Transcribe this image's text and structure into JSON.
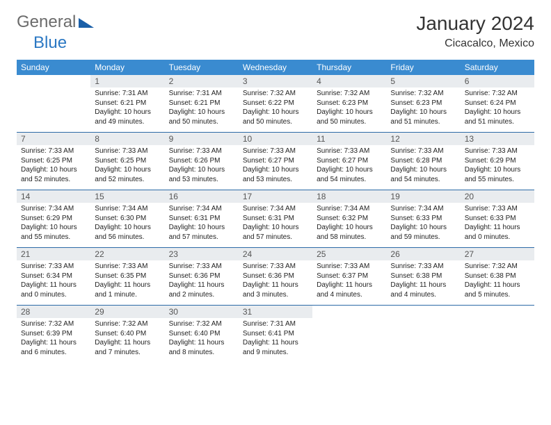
{
  "brand": {
    "part1": "General",
    "part2": "Blue"
  },
  "title": "January 2024",
  "location": "Cicacalco, Mexico",
  "colors": {
    "header_bg": "#3a8bd0",
    "header_text": "#ffffff",
    "daynum_bg": "#e9ecef",
    "rule": "#2b6aa6",
    "brand_gray": "#6b6b6b",
    "brand_blue": "#2b78c3"
  },
  "daysOfWeek": [
    "Sunday",
    "Monday",
    "Tuesday",
    "Wednesday",
    "Thursday",
    "Friday",
    "Saturday"
  ],
  "startOffset": 1,
  "days": [
    {
      "n": "1",
      "sunrise": "7:31 AM",
      "sunset": "6:21 PM",
      "daylight": "10 hours and 49 minutes."
    },
    {
      "n": "2",
      "sunrise": "7:31 AM",
      "sunset": "6:21 PM",
      "daylight": "10 hours and 50 minutes."
    },
    {
      "n": "3",
      "sunrise": "7:32 AM",
      "sunset": "6:22 PM",
      "daylight": "10 hours and 50 minutes."
    },
    {
      "n": "4",
      "sunrise": "7:32 AM",
      "sunset": "6:23 PM",
      "daylight": "10 hours and 50 minutes."
    },
    {
      "n": "5",
      "sunrise": "7:32 AM",
      "sunset": "6:23 PM",
      "daylight": "10 hours and 51 minutes."
    },
    {
      "n": "6",
      "sunrise": "7:32 AM",
      "sunset": "6:24 PM",
      "daylight": "10 hours and 51 minutes."
    },
    {
      "n": "7",
      "sunrise": "7:33 AM",
      "sunset": "6:25 PM",
      "daylight": "10 hours and 52 minutes."
    },
    {
      "n": "8",
      "sunrise": "7:33 AM",
      "sunset": "6:25 PM",
      "daylight": "10 hours and 52 minutes."
    },
    {
      "n": "9",
      "sunrise": "7:33 AM",
      "sunset": "6:26 PM",
      "daylight": "10 hours and 53 minutes."
    },
    {
      "n": "10",
      "sunrise": "7:33 AM",
      "sunset": "6:27 PM",
      "daylight": "10 hours and 53 minutes."
    },
    {
      "n": "11",
      "sunrise": "7:33 AM",
      "sunset": "6:27 PM",
      "daylight": "10 hours and 54 minutes."
    },
    {
      "n": "12",
      "sunrise": "7:33 AM",
      "sunset": "6:28 PM",
      "daylight": "10 hours and 54 minutes."
    },
    {
      "n": "13",
      "sunrise": "7:33 AM",
      "sunset": "6:29 PM",
      "daylight": "10 hours and 55 minutes."
    },
    {
      "n": "14",
      "sunrise": "7:34 AM",
      "sunset": "6:29 PM",
      "daylight": "10 hours and 55 minutes."
    },
    {
      "n": "15",
      "sunrise": "7:34 AM",
      "sunset": "6:30 PM",
      "daylight": "10 hours and 56 minutes."
    },
    {
      "n": "16",
      "sunrise": "7:34 AM",
      "sunset": "6:31 PM",
      "daylight": "10 hours and 57 minutes."
    },
    {
      "n": "17",
      "sunrise": "7:34 AM",
      "sunset": "6:31 PM",
      "daylight": "10 hours and 57 minutes."
    },
    {
      "n": "18",
      "sunrise": "7:34 AM",
      "sunset": "6:32 PM",
      "daylight": "10 hours and 58 minutes."
    },
    {
      "n": "19",
      "sunrise": "7:34 AM",
      "sunset": "6:33 PM",
      "daylight": "10 hours and 59 minutes."
    },
    {
      "n": "20",
      "sunrise": "7:33 AM",
      "sunset": "6:33 PM",
      "daylight": "11 hours and 0 minutes."
    },
    {
      "n": "21",
      "sunrise": "7:33 AM",
      "sunset": "6:34 PM",
      "daylight": "11 hours and 0 minutes."
    },
    {
      "n": "22",
      "sunrise": "7:33 AM",
      "sunset": "6:35 PM",
      "daylight": "11 hours and 1 minute."
    },
    {
      "n": "23",
      "sunrise": "7:33 AM",
      "sunset": "6:36 PM",
      "daylight": "11 hours and 2 minutes."
    },
    {
      "n": "24",
      "sunrise": "7:33 AM",
      "sunset": "6:36 PM",
      "daylight": "11 hours and 3 minutes."
    },
    {
      "n": "25",
      "sunrise": "7:33 AM",
      "sunset": "6:37 PM",
      "daylight": "11 hours and 4 minutes."
    },
    {
      "n": "26",
      "sunrise": "7:33 AM",
      "sunset": "6:38 PM",
      "daylight": "11 hours and 4 minutes."
    },
    {
      "n": "27",
      "sunrise": "7:32 AM",
      "sunset": "6:38 PM",
      "daylight": "11 hours and 5 minutes."
    },
    {
      "n": "28",
      "sunrise": "7:32 AM",
      "sunset": "6:39 PM",
      "daylight": "11 hours and 6 minutes."
    },
    {
      "n": "29",
      "sunrise": "7:32 AM",
      "sunset": "6:40 PM",
      "daylight": "11 hours and 7 minutes."
    },
    {
      "n": "30",
      "sunrise": "7:32 AM",
      "sunset": "6:40 PM",
      "daylight": "11 hours and 8 minutes."
    },
    {
      "n": "31",
      "sunrise": "7:31 AM",
      "sunset": "6:41 PM",
      "daylight": "11 hours and 9 minutes."
    }
  ],
  "labels": {
    "sunrise": "Sunrise:",
    "sunset": "Sunset:",
    "daylight": "Daylight:"
  }
}
